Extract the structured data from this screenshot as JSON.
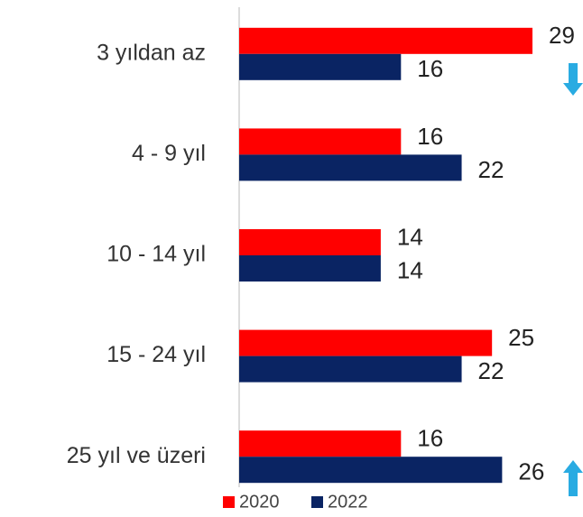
{
  "chart_data": {
    "type": "hbar",
    "categories": [
      "3 yıldan az",
      "4 - 9 yıl",
      "10 - 14 yıl",
      "15 - 24 yıl",
      "25 yıl ve üzeri"
    ],
    "series": [
      {
        "name": "2020",
        "color": "#ff0000",
        "values": [
          29,
          16,
          14,
          25,
          16
        ]
      },
      {
        "name": "2022",
        "color": "#0a2463",
        "values": [
          16,
          22,
          14,
          22,
          26
        ]
      }
    ],
    "xlim": [
      0,
      29
    ]
  }
}
